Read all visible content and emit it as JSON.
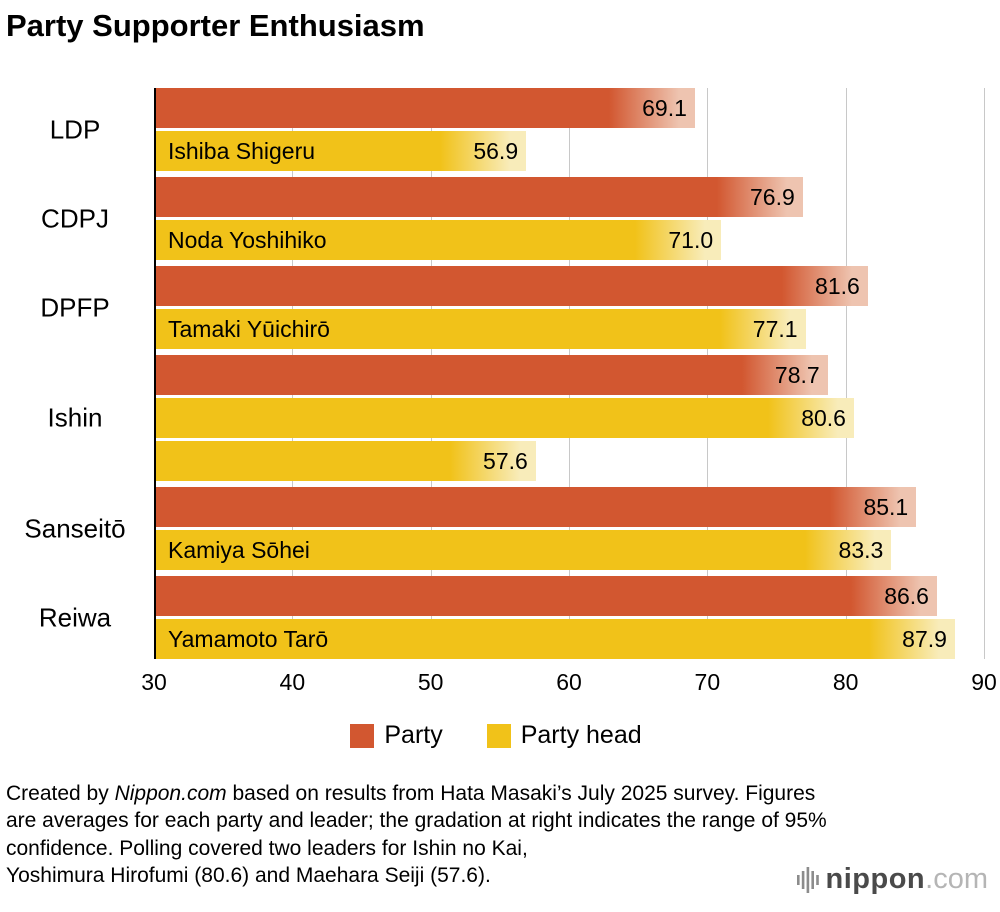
{
  "title": "Party Supporter Enthusiasm",
  "colors": {
    "party": "#d25730",
    "party_tip": "#eec4b0",
    "head": "#f1c219",
    "head_tip": "#f8ecba",
    "grid": "#c8c8c8",
    "axis": "#000000"
  },
  "chart_data": {
    "type": "bar",
    "orientation": "horizontal",
    "title": "Party Supporter Enthusiasm",
    "x_range": [
      30,
      90
    ],
    "x_ticks": [
      "30",
      "40",
      "50",
      "60",
      "70",
      "80",
      "90"
    ],
    "grid": true,
    "legend_position": "bottom",
    "legend": [
      {
        "label": "Party",
        "color": "#d25730"
      },
      {
        "label": "Party head",
        "color": "#f1c219"
      }
    ],
    "note": "Gradation at bar tip indicates the range of 95% confidence",
    "groups": [
      {
        "party": "LDP",
        "bars": [
          {
            "series": "Party",
            "value": 69.1,
            "display": "69.1"
          },
          {
            "series": "Party head",
            "value": 56.9,
            "display": "56.9",
            "name": "Ishiba Shigeru"
          }
        ]
      },
      {
        "party": "CDPJ",
        "bars": [
          {
            "series": "Party",
            "value": 76.9,
            "display": "76.9"
          },
          {
            "series": "Party head",
            "value": 71.0,
            "display": "71.0",
            "name": "Noda Yoshihiko"
          }
        ]
      },
      {
        "party": "DPFP",
        "bars": [
          {
            "series": "Party",
            "value": 81.6,
            "display": "81.6"
          },
          {
            "series": "Party head",
            "value": 77.1,
            "display": "77.1",
            "name": "Tamaki Yūichirō"
          }
        ]
      },
      {
        "party": "Ishin",
        "bars": [
          {
            "series": "Party",
            "value": 78.7,
            "display": "78.7"
          },
          {
            "series": "Party head",
            "value": 80.6,
            "display": "80.6"
          },
          {
            "series": "Party head",
            "value": 57.6,
            "display": "57.6"
          }
        ]
      },
      {
        "party": "Sanseitō",
        "bars": [
          {
            "series": "Party",
            "value": 85.1,
            "display": "85.1"
          },
          {
            "series": "Party head",
            "value": 83.3,
            "display": "83.3",
            "name": "Kamiya Sōhei"
          }
        ]
      },
      {
        "party": "Reiwa",
        "bars": [
          {
            "series": "Party",
            "value": 86.6,
            "display": "86.6"
          },
          {
            "series": "Party head",
            "value": 87.9,
            "display": "87.9",
            "name": "Yamamoto Tarō"
          }
        ]
      }
    ]
  },
  "footer": {
    "prefix": "Created by ",
    "brand": "Nippon.com",
    "line1_rest": " based on results from Hata Masaki’s July 2025 survey. Figures",
    "line2": "are averages for each party and leader; the gradation at right indicates the range of 95%",
    "line3": "confidence. Polling covered two leaders for Ishin no Kai,",
    "line4": "Yoshimura Hirofumi (80.6) and Maehara Seiji (57.6)."
  },
  "logo": {
    "name": "nippon",
    "tld": ".com"
  }
}
